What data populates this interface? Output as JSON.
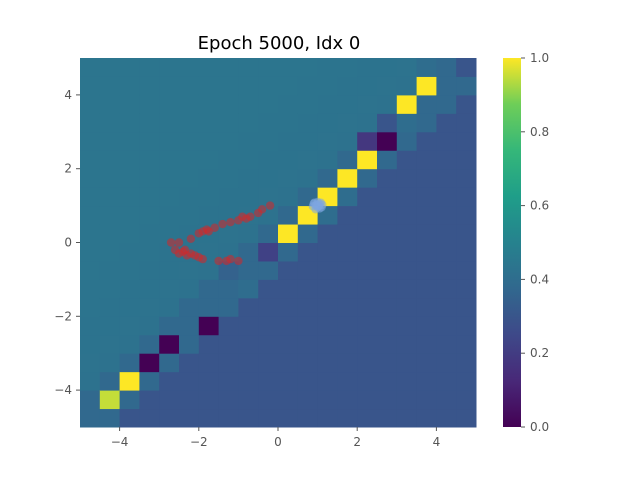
{
  "chart_data": {
    "type": "heatmap",
    "title": "Epoch 5000, Idx 0",
    "xlabel": "",
    "ylabel": "",
    "xlim": [
      -5,
      5
    ],
    "ylim": [
      -5,
      5
    ],
    "grid": false,
    "colormap": "viridis",
    "colorbar": {
      "vmin": 0.0,
      "vmax": 1.0,
      "ticks": [
        "0.0",
        "0.2",
        "0.4",
        "0.6",
        "0.8",
        "1.0"
      ]
    },
    "xticks": [
      "−4",
      "−2",
      "0",
      "2",
      "4"
    ],
    "yticks": [
      "4",
      "2",
      "0",
      "−2",
      "−4"
    ],
    "grid_cell_size": 0.5,
    "background_field": {
      "upper_left_value": 0.42,
      "lower_right_value": 0.3,
      "band_value": 0.38
    },
    "highlight_cells": [
      {
        "x": -4.5,
        "y": -4.5,
        "value": 0.95
      },
      {
        "x": -4.0,
        "y": -4.0,
        "value": 1.0
      },
      {
        "x": -3.5,
        "y": -3.5,
        "value": 0.0
      },
      {
        "x": -3.0,
        "y": -3.0,
        "value": 0.0
      },
      {
        "x": -2.0,
        "y": -2.5,
        "value": 0.0
      },
      {
        "x": -1.0,
        "y": -1.5,
        "value": 0.4
      },
      {
        "x": -1.5,
        "y": -1.0,
        "value": 0.35
      },
      {
        "x": -1.0,
        "y": -1.0,
        "value": 0.38
      },
      {
        "x": -0.5,
        "y": -1.0,
        "value": 0.38
      },
      {
        "x": -0.5,
        "y": -0.5,
        "value": 0.22
      },
      {
        "x": 0.0,
        "y": 0.0,
        "value": 1.0
      },
      {
        "x": 0.5,
        "y": 0.5,
        "value": 1.0
      },
      {
        "x": 1.0,
        "y": 1.0,
        "value": 1.0
      },
      {
        "x": 1.0,
        "y": 0.5,
        "value": 0.4
      },
      {
        "x": 1.5,
        "y": 1.0,
        "value": 0.4
      },
      {
        "x": 1.5,
        "y": 1.5,
        "value": 1.0
      },
      {
        "x": 2.0,
        "y": 2.0,
        "value": 1.0
      },
      {
        "x": 2.0,
        "y": 2.5,
        "value": 0.18
      },
      {
        "x": 2.5,
        "y": 2.5,
        "value": 0.0
      },
      {
        "x": 2.5,
        "y": 3.0,
        "value": 0.3
      },
      {
        "x": 3.0,
        "y": 3.0,
        "value": 0.4
      },
      {
        "x": 3.0,
        "y": 3.5,
        "value": 1.0
      },
      {
        "x": 3.5,
        "y": 4.0,
        "value": 1.0
      },
      {
        "x": 3.5,
        "y": 4.5,
        "value": 0.4
      },
      {
        "x": 4.5,
        "y": 4.5,
        "value": 0.3
      }
    ],
    "series": [
      {
        "kind": "scatter",
        "color": "#d62728",
        "points": [
          [
            -2.6,
            -0.2
          ],
          [
            -2.5,
            -0.3
          ],
          [
            -2.4,
            -0.25
          ],
          [
            -2.3,
            -0.35
          ],
          [
            -2.2,
            -0.3
          ],
          [
            -2.1,
            -0.35
          ],
          [
            -2.0,
            -0.4
          ],
          [
            -1.9,
            -0.45
          ],
          [
            -1.5,
            -0.5
          ],
          [
            -1.3,
            -0.5
          ],
          [
            -1.2,
            -0.45
          ],
          [
            -1.0,
            -0.5
          ],
          [
            -2.5,
            0.0
          ],
          [
            -2.2,
            0.1
          ],
          [
            -2.0,
            0.25
          ],
          [
            -1.9,
            0.3
          ],
          [
            -1.8,
            0.35
          ],
          [
            -1.6,
            0.4
          ],
          [
            -1.4,
            0.5
          ],
          [
            -1.2,
            0.55
          ],
          [
            -1.0,
            0.6
          ],
          [
            -0.9,
            0.7
          ],
          [
            -0.8,
            0.65
          ],
          [
            -0.7,
            0.7
          ],
          [
            -0.5,
            0.8
          ],
          [
            -0.4,
            0.9
          ],
          [
            -0.2,
            1.0
          ],
          [
            -2.7,
            0.0
          ],
          [
            -2.35,
            -0.2
          ],
          [
            -1.75,
            0.3
          ]
        ]
      },
      {
        "kind": "scatter",
        "color": "#7ea6e0",
        "points": [
          [
            0.95,
            1.0
          ],
          [
            1.0,
            0.95
          ],
          [
            1.05,
            1.05
          ],
          [
            0.9,
            1.05
          ],
          [
            1.1,
            0.95
          ],
          [
            1.0,
            1.1
          ],
          [
            0.95,
            0.9
          ],
          [
            1.05,
            0.92
          ],
          [
            1.12,
            1.02
          ],
          [
            0.88,
            0.98
          ],
          [
            1.0,
            1.0
          ],
          [
            0.98,
            1.03
          ],
          [
            1.03,
            0.98
          ],
          [
            0.92,
            1.08
          ],
          [
            1.08,
            1.08
          ]
        ]
      }
    ]
  }
}
